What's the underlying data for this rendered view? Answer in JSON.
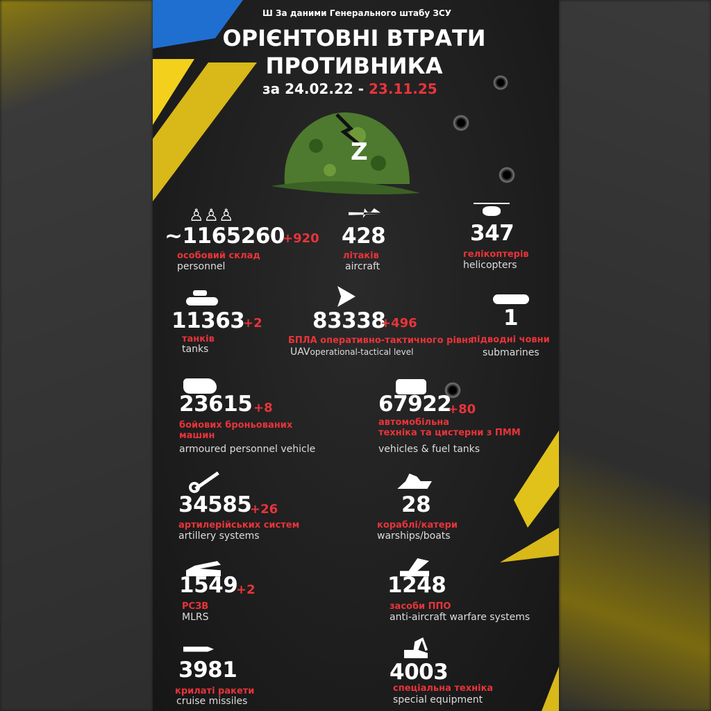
{
  "header": {
    "source": "За даними Генерального штабу ЗСУ",
    "title_line1": "ОРІЄНТОВНІ ВТРАТИ",
    "title_line2": "ПРОТИВНИКА",
    "period_prefix": "за 24.02.22 -",
    "period_end": "23.11.25"
  },
  "colors": {
    "accent_red": "#e8343a",
    "yellow": "#f2d01b",
    "blue": "#1f6fd1",
    "background": "#1c1c1c"
  },
  "stats": [
    {
      "icon": "soldiers-icon",
      "value": "~1165260",
      "increase": "+920",
      "label_ua": "особовий склад",
      "label_en": "personnel"
    },
    {
      "icon": "jet-icon",
      "value": "428",
      "increase": "",
      "label_ua": "літаків",
      "label_en": "aircraft"
    },
    {
      "icon": "helicopter-icon",
      "value": "347",
      "increase": "",
      "label_ua": "гелікоптерів",
      "label_en": "helicopters"
    },
    {
      "icon": "tank-icon",
      "value": "11363",
      "increase": "+2",
      "label_ua": "танків",
      "label_en": "tanks"
    },
    {
      "icon": "drone-icon",
      "value": "83338",
      "increase": "+496",
      "label_ua": "БПЛА оперативно-тактичного рівня",
      "label_en": "UAV",
      "label_en2": "operational-tactical level"
    },
    {
      "icon": "submarine-icon",
      "value": "1",
      "increase": "",
      "label_ua": "підводні човни",
      "label_en": "submarines"
    },
    {
      "icon": "apc-icon",
      "value": "23615",
      "increase": "+8",
      "label_ua": "бойових броньованих",
      "label_ua2": "машин",
      "label_en": "armoured personnel vehicle"
    },
    {
      "icon": "vehicle-icon",
      "value": "67922",
      "increase": "+80",
      "label_ua": "автомобільна",
      "label_ua2": "техніка  та цистерни з ПММ",
      "label_en": "vehicles & fuel tanks"
    },
    {
      "icon": "artillery-icon",
      "value": "34585",
      "increase": "+26",
      "label_ua": "артилерійських систем",
      "label_en": "artillery systems"
    },
    {
      "icon": "warship-icon",
      "value": "28",
      "increase": "",
      "label_ua": "кораблі/катери",
      "label_en": "warships/boats"
    },
    {
      "icon": "mlrs-icon",
      "value": "1549",
      "increase": "+2",
      "label_ua": "РСЗВ",
      "label_en": "MLRS"
    },
    {
      "icon": "air-defense-icon",
      "value": "1248",
      "increase": "",
      "label_ua": "засоби ППО",
      "label_en": "anti-aircraft warfare systems"
    },
    {
      "icon": "cruise-missile-icon",
      "value": "3981",
      "increase": "",
      "label_ua": "крилаті ракети",
      "label_en": "cruise missiles"
    },
    {
      "icon": "excavator-icon",
      "value": "4003",
      "increase": "",
      "label_ua": "спеціальна техніка",
      "label_en": "special equipment"
    }
  ]
}
